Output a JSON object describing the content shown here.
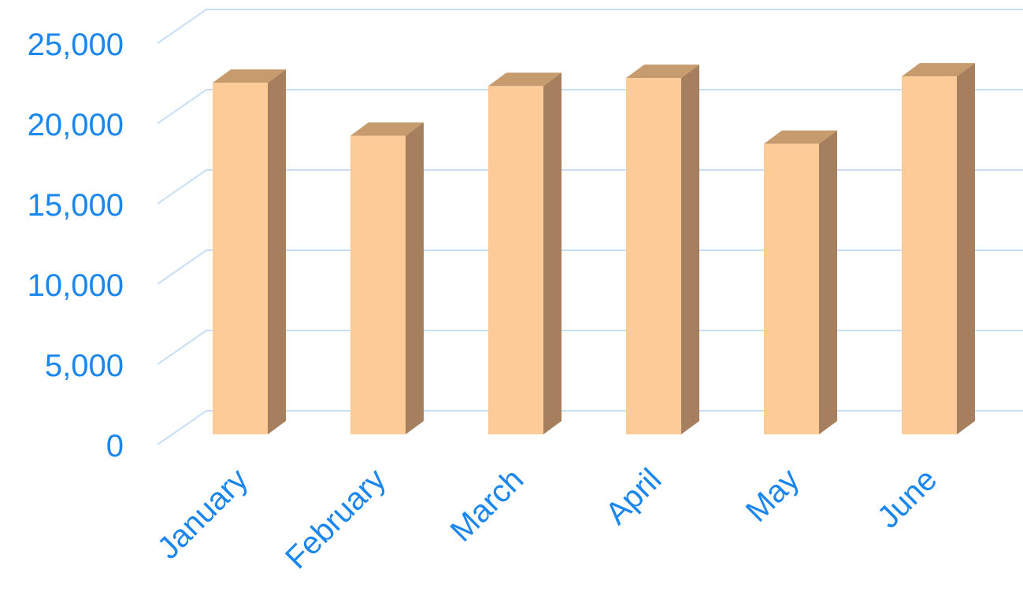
{
  "chart_data": {
    "type": "bar3d",
    "categories": [
      "January",
      "February",
      "March",
      "April",
      "May",
      "June"
    ],
    "values": [
      21900,
      18600,
      21700,
      22200,
      18100,
      22300
    ],
    "color": "#fdcb98",
    "ylim": [
      0,
      25000
    ],
    "yticks": [
      0,
      {
        "value": 5000,
        "label": "5,000"
      },
      {
        "value": 10000,
        "label": "10,000"
      },
      {
        "value": 15000,
        "label": "15,000"
      },
      {
        "value": 20000,
        "label": "20,000"
      },
      {
        "value": 25000,
        "label": "25,000"
      }
    ],
    "grid": true
  }
}
